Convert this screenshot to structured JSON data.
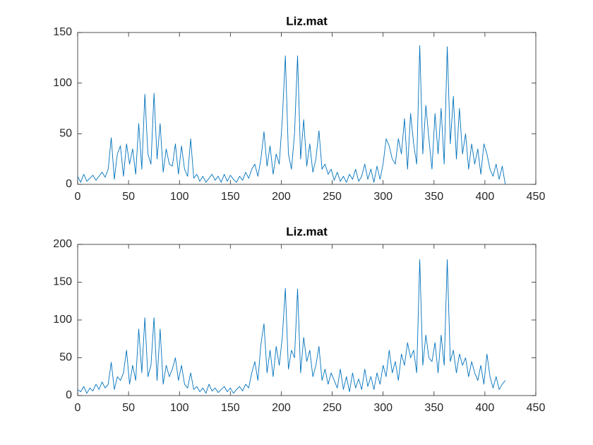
{
  "chart_data": [
    {
      "type": "line",
      "title": "Liz.mat",
      "color": "#0072bd",
      "x": [
        0,
        3,
        6,
        9,
        12,
        15,
        18,
        21,
        24,
        27,
        30,
        33,
        36,
        39,
        42,
        45,
        48,
        51,
        54,
        57,
        60,
        63,
        66,
        69,
        72,
        75,
        78,
        81,
        84,
        87,
        90,
        93,
        96,
        99,
        102,
        105,
        108,
        111,
        114,
        117,
        120,
        123,
        126,
        129,
        132,
        135,
        138,
        141,
        144,
        147,
        150,
        153,
        156,
        159,
        162,
        165,
        168,
        171,
        174,
        177,
        180,
        183,
        186,
        189,
        192,
        195,
        198,
        201,
        204,
        207,
        210,
        213,
        216,
        219,
        222,
        225,
        228,
        231,
        234,
        237,
        240,
        243,
        246,
        249,
        252,
        255,
        258,
        261,
        264,
        267,
        270,
        273,
        276,
        279,
        282,
        285,
        288,
        291,
        294,
        297,
        300,
        303,
        306,
        309,
        312,
        315,
        318,
        321,
        324,
        327,
        330,
        333,
        336,
        339,
        342,
        345,
        348,
        351,
        354,
        357,
        360,
        363,
        366,
        369,
        372,
        375,
        378,
        381,
        384,
        387,
        390,
        393,
        396,
        399,
        402,
        405,
        408,
        411,
        414,
        417,
        420
      ],
      "values": [
        8,
        2,
        10,
        3,
        6,
        9,
        4,
        8,
        12,
        7,
        15,
        46,
        5,
        30,
        38,
        8,
        40,
        20,
        35,
        10,
        60,
        15,
        89,
        30,
        20,
        90,
        25,
        60,
        12,
        35,
        20,
        18,
        40,
        10,
        38,
        15,
        8,
        45,
        6,
        10,
        3,
        8,
        2,
        6,
        10,
        4,
        8,
        2,
        10,
        3,
        9,
        5,
        2,
        8,
        4,
        12,
        6,
        15,
        20,
        8,
        25,
        52,
        18,
        38,
        10,
        30,
        20,
        64,
        127,
        30,
        15,
        50,
        127,
        25,
        64,
        18,
        40,
        12,
        25,
        53,
        15,
        20,
        10,
        15,
        4,
        12,
        3,
        8,
        2,
        10,
        5,
        15,
        3,
        8,
        20,
        5,
        15,
        2,
        18,
        5,
        20,
        45,
        38,
        25,
        20,
        45,
        30,
        65,
        15,
        70,
        40,
        20,
        137,
        30,
        78,
        45,
        15,
        70,
        30,
        75,
        20,
        136,
        40,
        87,
        25,
        75,
        30,
        50,
        15,
        40,
        20,
        35,
        10,
        40,
        30,
        15,
        8,
        20,
        5,
        18,
        0
      ],
      "xlim": [
        0,
        450
      ],
      "xticks": [
        0,
        50,
        100,
        150,
        200,
        250,
        300,
        350,
        400,
        450
      ],
      "ylim": [
        0,
        150
      ],
      "yticks": [
        0,
        50,
        100,
        150
      ]
    },
    {
      "type": "line",
      "title": "Liz.mat",
      "color": "#0072bd",
      "x": [
        0,
        3,
        6,
        9,
        12,
        15,
        18,
        21,
        24,
        27,
        30,
        33,
        36,
        39,
        42,
        45,
        48,
        51,
        54,
        57,
        60,
        63,
        66,
        69,
        72,
        75,
        78,
        81,
        84,
        87,
        90,
        93,
        96,
        99,
        102,
        105,
        108,
        111,
        114,
        117,
        120,
        123,
        126,
        129,
        132,
        135,
        138,
        141,
        144,
        147,
        150,
        153,
        156,
        159,
        162,
        165,
        168,
        171,
        174,
        177,
        180,
        183,
        186,
        189,
        192,
        195,
        198,
        201,
        204,
        207,
        210,
        213,
        216,
        219,
        222,
        225,
        228,
        231,
        234,
        237,
        240,
        243,
        246,
        249,
        252,
        255,
        258,
        261,
        264,
        267,
        270,
        273,
        276,
        279,
        282,
        285,
        288,
        291,
        294,
        297,
        300,
        303,
        306,
        309,
        312,
        315,
        318,
        321,
        324,
        327,
        330,
        333,
        336,
        339,
        342,
        345,
        348,
        351,
        354,
        357,
        360,
        363,
        366,
        369,
        372,
        375,
        378,
        381,
        384,
        387,
        390,
        393,
        396,
        399,
        402,
        405,
        408,
        411,
        414,
        417,
        420
      ],
      "values": [
        8,
        5,
        12,
        3,
        10,
        6,
        15,
        8,
        18,
        10,
        15,
        44,
        8,
        25,
        20,
        30,
        60,
        15,
        40,
        20,
        88,
        30,
        103,
        25,
        40,
        103,
        20,
        88,
        15,
        40,
        25,
        35,
        50,
        20,
        40,
        15,
        10,
        30,
        8,
        12,
        5,
        10,
        3,
        15,
        6,
        10,
        4,
        8,
        12,
        5,
        10,
        3,
        8,
        12,
        6,
        15,
        10,
        30,
        45,
        20,
        68,
        95,
        30,
        60,
        25,
        65,
        40,
        77,
        142,
        35,
        60,
        50,
        141,
        30,
        77,
        45,
        60,
        25,
        40,
        65,
        20,
        35,
        15,
        30,
        20,
        10,
        35,
        8,
        25,
        5,
        30,
        10,
        22,
        8,
        35,
        12,
        25,
        8,
        30,
        15,
        40,
        25,
        60,
        30,
        45,
        20,
        55,
        40,
        70,
        50,
        60,
        30,
        180,
        40,
        80,
        50,
        45,
        70,
        30,
        80,
        40,
        180,
        45,
        60,
        30,
        55,
        40,
        50,
        25,
        45,
        30,
        20,
        40,
        15,
        55,
        25,
        10,
        25,
        8,
        15,
        20
      ],
      "xlim": [
        0,
        450
      ],
      "xticks": [
        0,
        50,
        100,
        150,
        200,
        250,
        300,
        350,
        400,
        450
      ],
      "ylim": [
        0,
        200
      ],
      "yticks": [
        0,
        50,
        100,
        150,
        200
      ]
    }
  ]
}
